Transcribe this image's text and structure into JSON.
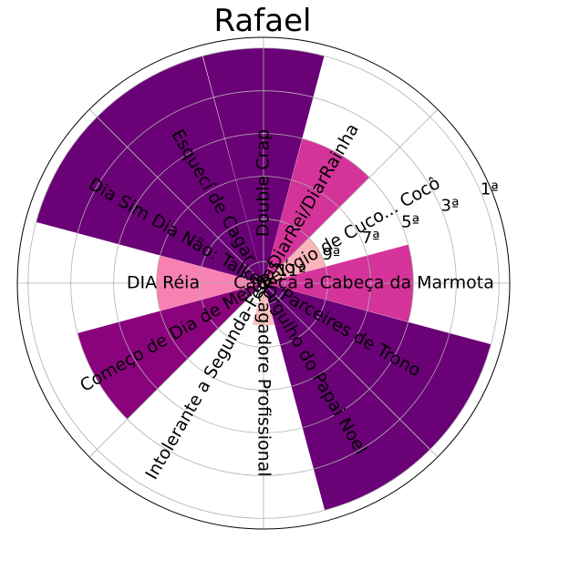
{
  "chart_data": {
    "type": "bar",
    "subtype": "polar",
    "title": "Rafael",
    "grid": true,
    "radial_ticks": [
      "1ª",
      "3ª",
      "5ª",
      "7ª",
      "9ª",
      "11ª"
    ],
    "radial_tick_values": [
      1,
      3,
      5,
      7,
      9,
      11
    ],
    "rlim": [
      12,
      0.5
    ],
    "categories": [
      "Cabeça a Cabeça da Marmota",
      "Relógio de Cuco... Cocô",
      "DiarRei/DiarRainha",
      "Double Crap",
      "Esquecí de Cagar",
      "Dia Sim Dia Não: Talkei",
      "DIA Réia",
      "Começo de Dia de Merda",
      "Intolerante a Segunda-Feiras",
      "Cagadore Profissional",
      "Orgulho do Papai Noel",
      "Parceires de Trono"
    ],
    "values": [
      5,
      9,
      5,
      1,
      1,
      1,
      7,
      3,
      12,
      10,
      1,
      1
    ],
    "colors": [
      "#d4339a",
      "#fbb4b9",
      "#d4339a",
      "#6a0176",
      "#6a0176",
      "#6a0176",
      "#f880b2",
      "#8a037d",
      "#fbd3d8",
      "#fbc1c1",
      "#6a0176",
      "#6a0176"
    ]
  }
}
